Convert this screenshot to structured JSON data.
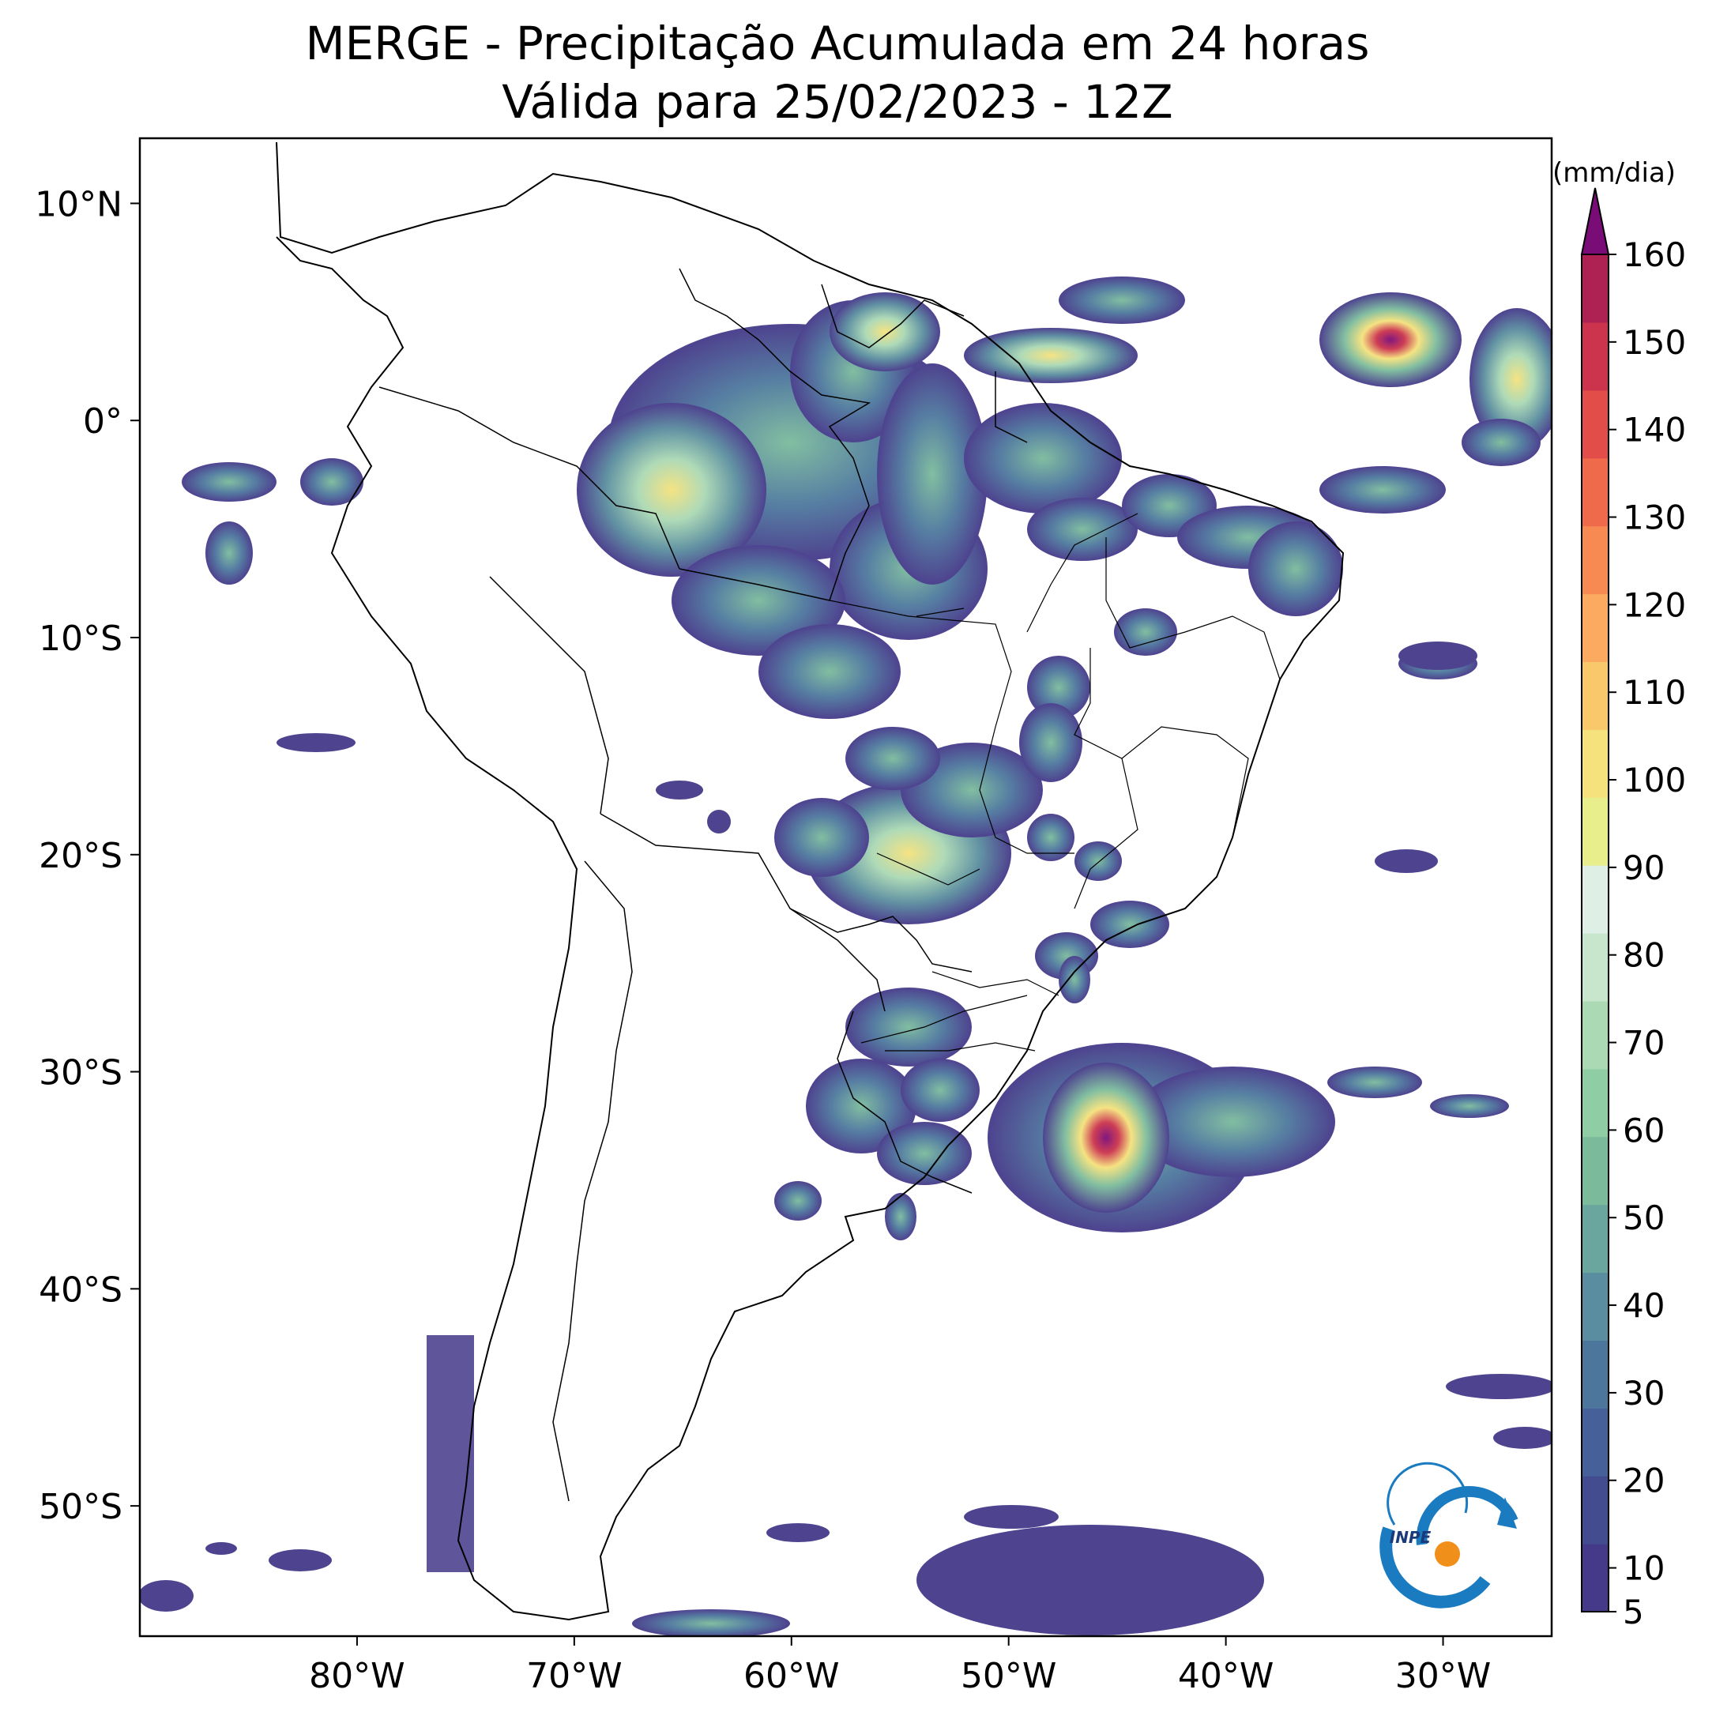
{
  "title": "MERGE - Precipitação Acumulada em 24 horas",
  "subtitle": "Válida para 25/02/2023 - 12Z",
  "colorbar": {
    "units": "(mm/dia)",
    "min": 5,
    "max": 160,
    "ticks": [
      "5",
      "10",
      "20",
      "30",
      "40",
      "50",
      "60",
      "70",
      "80",
      "90",
      "100",
      "110",
      "120",
      "130",
      "140",
      "150",
      "160"
    ],
    "tick_values": [
      5,
      10,
      20,
      30,
      40,
      50,
      60,
      70,
      80,
      90,
      100,
      110,
      120,
      130,
      140,
      150,
      160
    ],
    "colors": [
      "#45398a",
      "#434c8f",
      "#46609a",
      "#4d769d",
      "#5a8d9f",
      "#6aa59e",
      "#7bbb9c",
      "#8fcda4",
      "#abd9b4",
      "#c7e6cc",
      "#deefe6",
      "#e8ee8b",
      "#f5e27c",
      "#f9c86a",
      "#fbaa5f",
      "#f78a53",
      "#ef694b",
      "#e24d4a",
      "#cc344d",
      "#ad2252",
      "#7a0c78"
    ]
  },
  "lon_ticks": [
    "80°W",
    "70°W",
    "60°W",
    "50°W",
    "40°W",
    "30°W"
  ],
  "lon_values": [
    -80,
    -70,
    -60,
    -50,
    -40,
    -30
  ],
  "lat_ticks": [
    "10°N",
    "0°",
    "10°S",
    "20°S",
    "30°S",
    "40°S",
    "50°S"
  ],
  "lat_values": [
    10,
    0,
    -10,
    -20,
    -30,
    -40,
    -50
  ],
  "extent": {
    "lon_min": -90,
    "lon_max": -25,
    "lat_min": -56,
    "lat_max": 13
  },
  "logo": {
    "text": "INPE"
  }
}
